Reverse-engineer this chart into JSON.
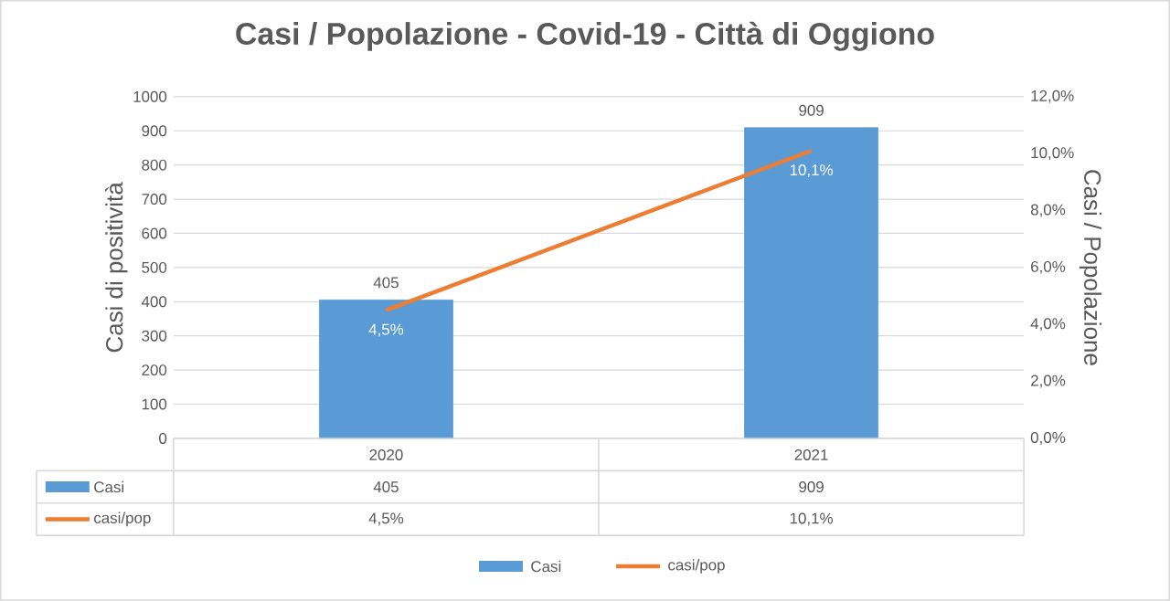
{
  "chart_data": {
    "type": "bar",
    "title": "Casi / Popolazione - Covid-19 - Città di Oggiono",
    "ylabel": "Casi di positività",
    "y2label": "Casi / Popolazione",
    "categories": [
      "2020",
      "2021"
    ],
    "series": [
      {
        "name": "Casi",
        "color": "#5b9bd5",
        "values": [
          405,
          909
        ],
        "value_labels": [
          "405",
          "909"
        ]
      },
      {
        "name": "casi/pop",
        "type": "line",
        "axis": "y2",
        "color": "#ed7d31",
        "values": [
          4.5,
          10.1
        ],
        "value_labels": [
          "4,5%",
          "10,1%"
        ]
      }
    ],
    "ylim": [
      0,
      1000
    ],
    "yticks": [
      0,
      100,
      200,
      300,
      400,
      500,
      600,
      700,
      800,
      900,
      1000
    ],
    "y2lim": [
      0,
      12
    ],
    "y2ticks": [
      {
        "value": 0,
        "label": "0,0%"
      },
      {
        "value": 2,
        "label": "2,0%"
      },
      {
        "value": 4,
        "label": "4,0%"
      },
      {
        "value": 6,
        "label": "6,0%"
      },
      {
        "value": 8,
        "label": "8,0%"
      },
      {
        "value": 10,
        "label": "10,0%"
      },
      {
        "value": 12,
        "label": "12,0%"
      }
    ],
    "grid": "y",
    "legend": "bottom",
    "marker": "none",
    "line_style": "solid"
  }
}
